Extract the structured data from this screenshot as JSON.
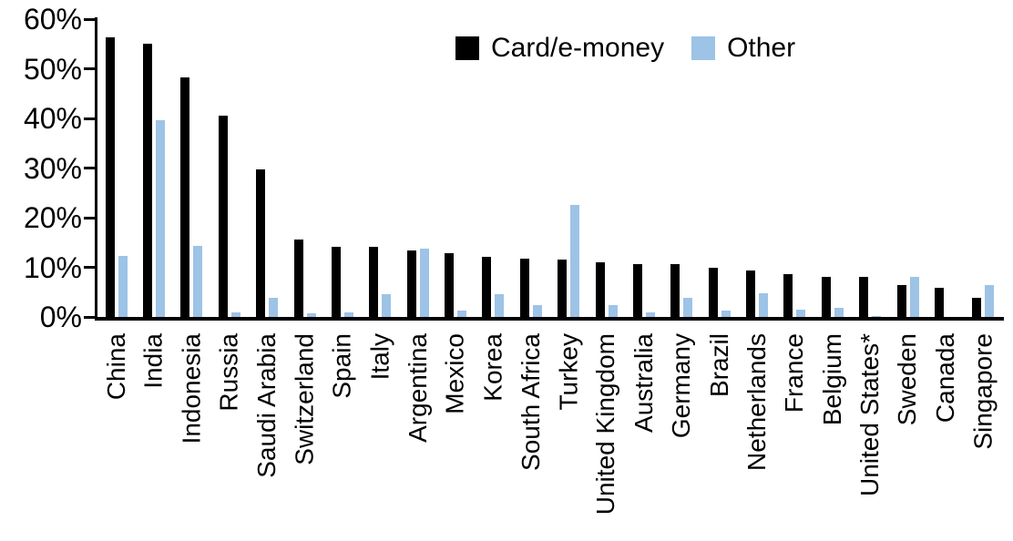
{
  "chart_data": {
    "type": "bar",
    "title": "",
    "xlabel": "",
    "ylabel": "",
    "ylim": [
      0,
      60
    ],
    "grid": false,
    "legend_position": "top-center",
    "y_ticks": [
      {
        "label": "0%",
        "value": 0
      },
      {
        "label": "10%",
        "value": 10
      },
      {
        "label": "20%",
        "value": 20
      },
      {
        "label": "30%",
        "value": 30
      },
      {
        "label": "40%",
        "value": 40
      },
      {
        "label": "50%",
        "value": 50
      },
      {
        "label": "60%",
        "value": 60
      }
    ],
    "categories": [
      "China",
      "India",
      "Indonesia",
      "Russia",
      "Saudi Arabia",
      "Switzerland",
      "Spain",
      "Italy",
      "Argentina",
      "Mexico",
      "Korea",
      "South Africa",
      "Turkey",
      "United Kingdom",
      "Australia",
      "Germany",
      "Brazil",
      "Netherlands",
      "France",
      "Belgium",
      "United States*",
      "Sweden",
      "Canada",
      "Singapore"
    ],
    "series": [
      {
        "name": "Card/e-money",
        "color": "#000000",
        "values": [
          56.3,
          55.0,
          48.3,
          40.5,
          29.8,
          15.6,
          14.2,
          14.1,
          13.4,
          12.9,
          12.2,
          11.7,
          11.6,
          11.0,
          10.7,
          10.6,
          10.0,
          9.3,
          8.6,
          8.1,
          8.0,
          6.4,
          5.9,
          3.8
        ]
      },
      {
        "name": "Other",
        "color": "#9DC3E6",
        "values": [
          12.3,
          39.7,
          14.4,
          1.0,
          3.9,
          0.8,
          1.0,
          4.5,
          13.8,
          1.2,
          4.6,
          2.3,
          22.6,
          2.3,
          0.9,
          3.9,
          1.2,
          4.8,
          1.5,
          1.9,
          0.2,
          8.1,
          0.0,
          6.5
        ]
      }
    ]
  }
}
